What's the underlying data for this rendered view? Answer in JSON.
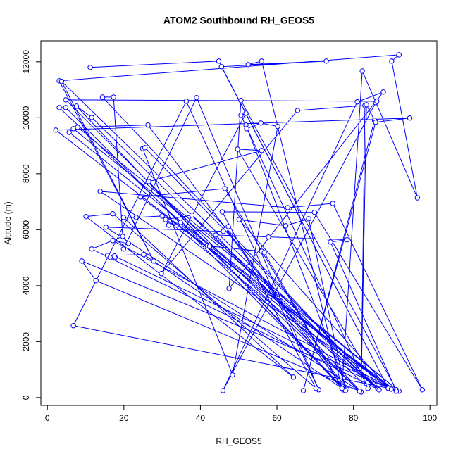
{
  "chart_data": {
    "type": "line",
    "marker": "circle",
    "title": "ATOM2 Southbound RH_GEOS5",
    "xlabel": "RH_GEOS5",
    "ylabel": "Altitude (m)",
    "color": "#0000ff",
    "xlim": [
      -1.7,
      101.8
    ],
    "ylim": [
      -280,
      12750
    ],
    "xticks": [
      0,
      20,
      40,
      60,
      80,
      100
    ],
    "yticks": [
      0,
      2000,
      4000,
      6000,
      8000,
      10000,
      12000
    ],
    "x": [
      11.2,
      44.8,
      89.1,
      45.5,
      72.9,
      52.5,
      56,
      77,
      82.3,
      96.7,
      90,
      91.9,
      3.1,
      27.8,
      3.7,
      86.4,
      14.4,
      17.3,
      19.9,
      39,
      70.9,
      36.3,
      6.8,
      91.2,
      50.6,
      47.5,
      87.8,
      81,
      45.9,
      85.8,
      86.1,
      4.8,
      81.6,
      3.1,
      4.8,
      77.9,
      7.6,
      11.6,
      83.8,
      50.6,
      51.9,
      29.8,
      65.4,
      83,
      82,
      83.4,
      85.5,
      66.9,
      85.8,
      94.7,
      2.2,
      89.9,
      5.7,
      6.8,
      91.9,
      7.9,
      26.3,
      78.3,
      51.9,
      52.1,
      55.8,
      60.2,
      48.4,
      24.9,
      25.5,
      86.7,
      49.7,
      56,
      26.5,
      77.3,
      46.4,
      24.3,
      91.2,
      13.8,
      62.8,
      74.6,
      98,
      69.8,
      45.7,
      70.2,
      17.1,
      10.1,
      64.3,
      19.9,
      23.2,
      30,
      86.4,
      37.8,
      30.9,
      31.7,
      34.8,
      89.1,
      50.1,
      62.3,
      68.3,
      77.9,
      46.6,
      47.3,
      46,
      15.3,
      82,
      44,
      57.8,
      78.3,
      74,
      91.2,
      17.1,
      21.2,
      19.7,
      11.6,
      86.7,
      41.8,
      42.4,
      56,
      56.7,
      77,
      25.2,
      15.7,
      16.4,
      17.7,
      17.5,
      89.9,
      9,
      12.7,
      81.6
    ],
    "values": [
      11800,
      12025,
      330,
      11825,
      12025,
      11900,
      12025,
      330,
      11670,
      7140,
      12025,
      12250,
      11320,
      4880,
      11300,
      300,
      10740,
      10740,
      5310,
      10720,
      280,
      10590,
      2570,
      280,
      10620,
      3900,
      10920,
      10570,
      250,
      10540,
      10590,
      10640,
      230,
      10365,
      10365,
      250,
      10415,
      10010,
      330,
      10090,
      10160,
      4430,
      10260,
      10440,
      200,
      10465,
      9910,
      250,
      9840,
      9990,
      9560,
      300,
      9480,
      9610,
      230,
      9660,
      9740,
      300,
      9740,
      9610,
      9810,
      9690,
      810,
      8900,
      8930,
      280,
      8880,
      8830,
      7720,
      280,
      7470,
      7170,
      230,
      7370,
      6790,
      6940,
      280,
      6620,
      6640,
      330,
      6570,
      6470,
      730,
      6440,
      6440,
      6490,
      300,
      6520,
      6360,
      6160,
      6260,
      330,
      6360,
      6140,
      6390,
      250,
      6010,
      6110,
      5940,
      6090,
      200,
      5810,
      5740,
      5640,
      5560,
      230,
      5610,
      5510,
      5760,
      5310,
      280,
      5430,
      5410,
      5230,
      5180,
      330,
      5110,
      5080,
      5010,
      5010,
      5060,
      300,
      4880,
      4180,
      230
    ]
  }
}
